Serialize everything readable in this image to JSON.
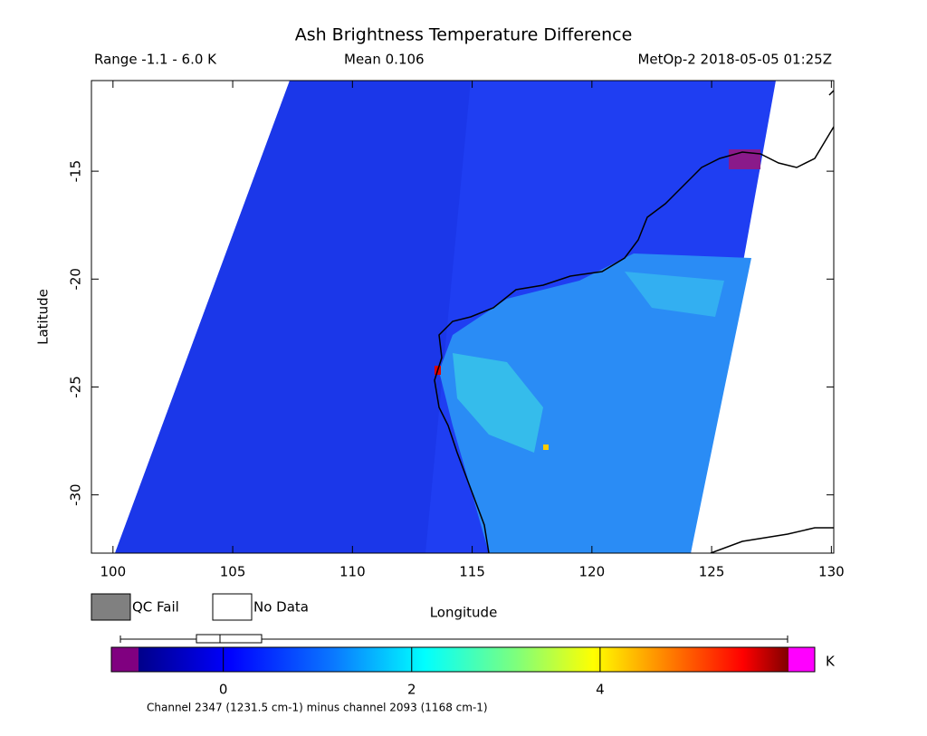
{
  "title": "Ash Brightness Temperature Difference",
  "header": {
    "range": "Range -1.1 - 6.0 K",
    "mean": "Mean 0.106",
    "source": "MetOp-2 2018-05-05 01:25Z"
  },
  "map": {
    "x_label": "Longitude",
    "y_label": "Latitude",
    "xlim": [
      99.1,
      130.1
    ],
    "ylim": [
      -32.7,
      -10.8
    ],
    "xticks": [
      100,
      105,
      110,
      115,
      120,
      125,
      130
    ],
    "yticks": [
      -30,
      -25,
      -20,
      -15
    ]
  },
  "legend": [
    {
      "label": "QC Fail",
      "color": "#808080"
    },
    {
      "label": "No Data",
      "color": "#ffffff"
    }
  ],
  "colorbar": {
    "lim": [
      -0.9,
      6.0
    ],
    "ticks": [
      0,
      2,
      4
    ],
    "unit": "K",
    "caption": "Channel 2347 (1231.5 cm-1) minus channel 2093 (1168 cm-1)"
  }
}
